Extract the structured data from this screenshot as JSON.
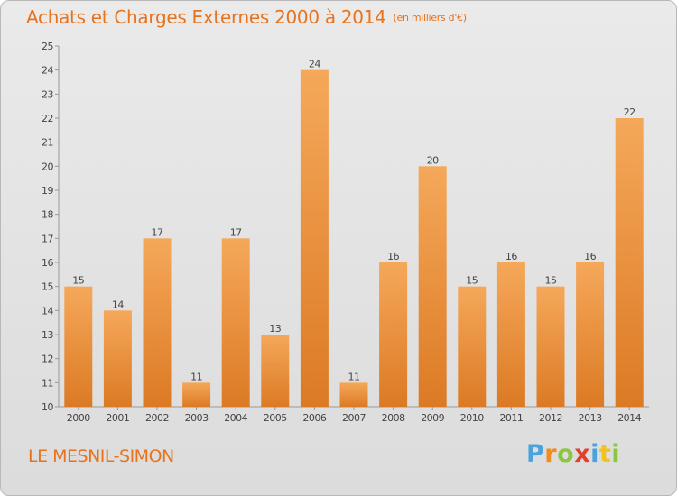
{
  "title": "Achats et Charges Externes 2000 à 2014",
  "unit": "(en milliers d'€)",
  "commune": "LE MESNIL-SIMON",
  "logo": {
    "text": "Proxiti",
    "letter_colors": [
      "#4aa3df",
      "#f28c1e",
      "#8cc63f",
      "#e2402a",
      "#4aa3df",
      "#f2c21e",
      "#8cc63f"
    ]
  },
  "colors": {
    "accent": "#e8731e",
    "bar_top": "#f5a85a",
    "bar_bottom": "#dc7a24"
  },
  "chart_data": {
    "type": "bar",
    "categories": [
      "2000",
      "2001",
      "2002",
      "2003",
      "2004",
      "2005",
      "2006",
      "2007",
      "2008",
      "2009",
      "2010",
      "2011",
      "2012",
      "2013",
      "2014"
    ],
    "values": [
      15,
      14,
      17,
      11,
      17,
      13,
      24,
      11,
      16,
      20,
      15,
      16,
      15,
      16,
      22
    ],
    "ylim": [
      10,
      25
    ],
    "yticks": [
      10,
      11,
      12,
      13,
      14,
      15,
      16,
      17,
      18,
      19,
      20,
      21,
      22,
      23,
      24,
      25
    ],
    "title": "Achats et Charges Externes 2000 à 2014",
    "xlabel": "",
    "ylabel": "",
    "grid": false
  }
}
